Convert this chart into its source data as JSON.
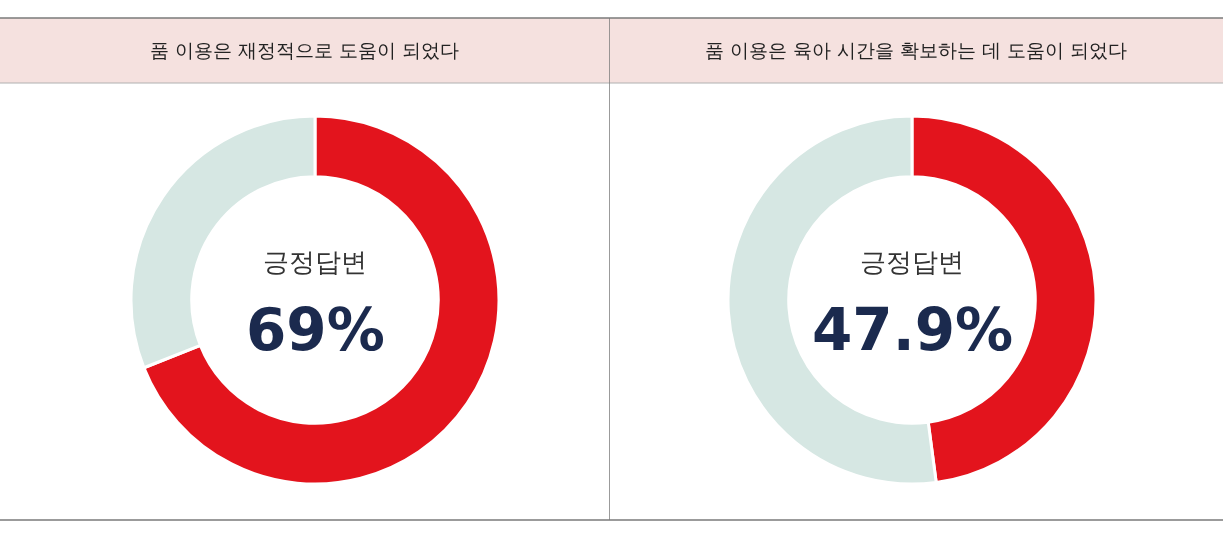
{
  "chart_data": [
    {
      "type": "donut",
      "title": "품 이용은 재정적으로 도움이 되었다",
      "categories": [
        null,
        null
      ],
      "values": [
        69,
        31
      ],
      "colors": [
        "#e3141d",
        "#d6e7e3"
      ],
      "annotations": [
        "긍정답변",
        "69%"
      ]
    },
    {
      "type": "donut",
      "title": "품 이용은 육아 시간을 확보하는 데 도움이 되었다",
      "categories": [
        null,
        null
      ],
      "values": [
        47.9,
        52.1
      ],
      "colors": [
        "#e3141d",
        "#d6e7e3"
      ],
      "annotations": [
        "긍정답변",
        "47.9%"
      ]
    }
  ]
}
